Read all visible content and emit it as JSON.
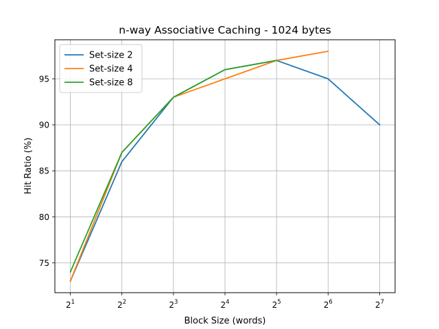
{
  "chart_data": {
    "type": "line",
    "title": "n-way Associative Caching - 1024 bytes",
    "xlabel": "Block Size (words)",
    "ylabel": "Hit Ratio (%)",
    "x_scale": "log2",
    "x": [
      2,
      4,
      8,
      16,
      32,
      64,
      128
    ],
    "x_tick_base": "2",
    "x_tick_exponents": [
      "1",
      "2",
      "3",
      "4",
      "5",
      "6",
      "7"
    ],
    "y_ticks": [
      75,
      80,
      85,
      90,
      95
    ],
    "ylim": [
      71.75,
      99.25
    ],
    "grid": true,
    "legend_position": "top-left",
    "series": [
      {
        "name": "Set-size 2",
        "color": "#1f77b4",
        "x": [
          2,
          4,
          8,
          16,
          32,
          64,
          128
        ],
        "values": [
          73,
          86,
          93,
          96,
          97,
          95,
          90
        ]
      },
      {
        "name": "Set-size 4",
        "color": "#ff7f0e",
        "x": [
          2,
          4,
          8,
          16,
          32,
          64
        ],
        "values": [
          73,
          87,
          93,
          95,
          97,
          98
        ]
      },
      {
        "name": "Set-size 8",
        "color": "#2ca02c",
        "x": [
          2,
          4,
          8,
          16,
          32
        ],
        "values": [
          74,
          87,
          93,
          96,
          97
        ]
      }
    ]
  }
}
